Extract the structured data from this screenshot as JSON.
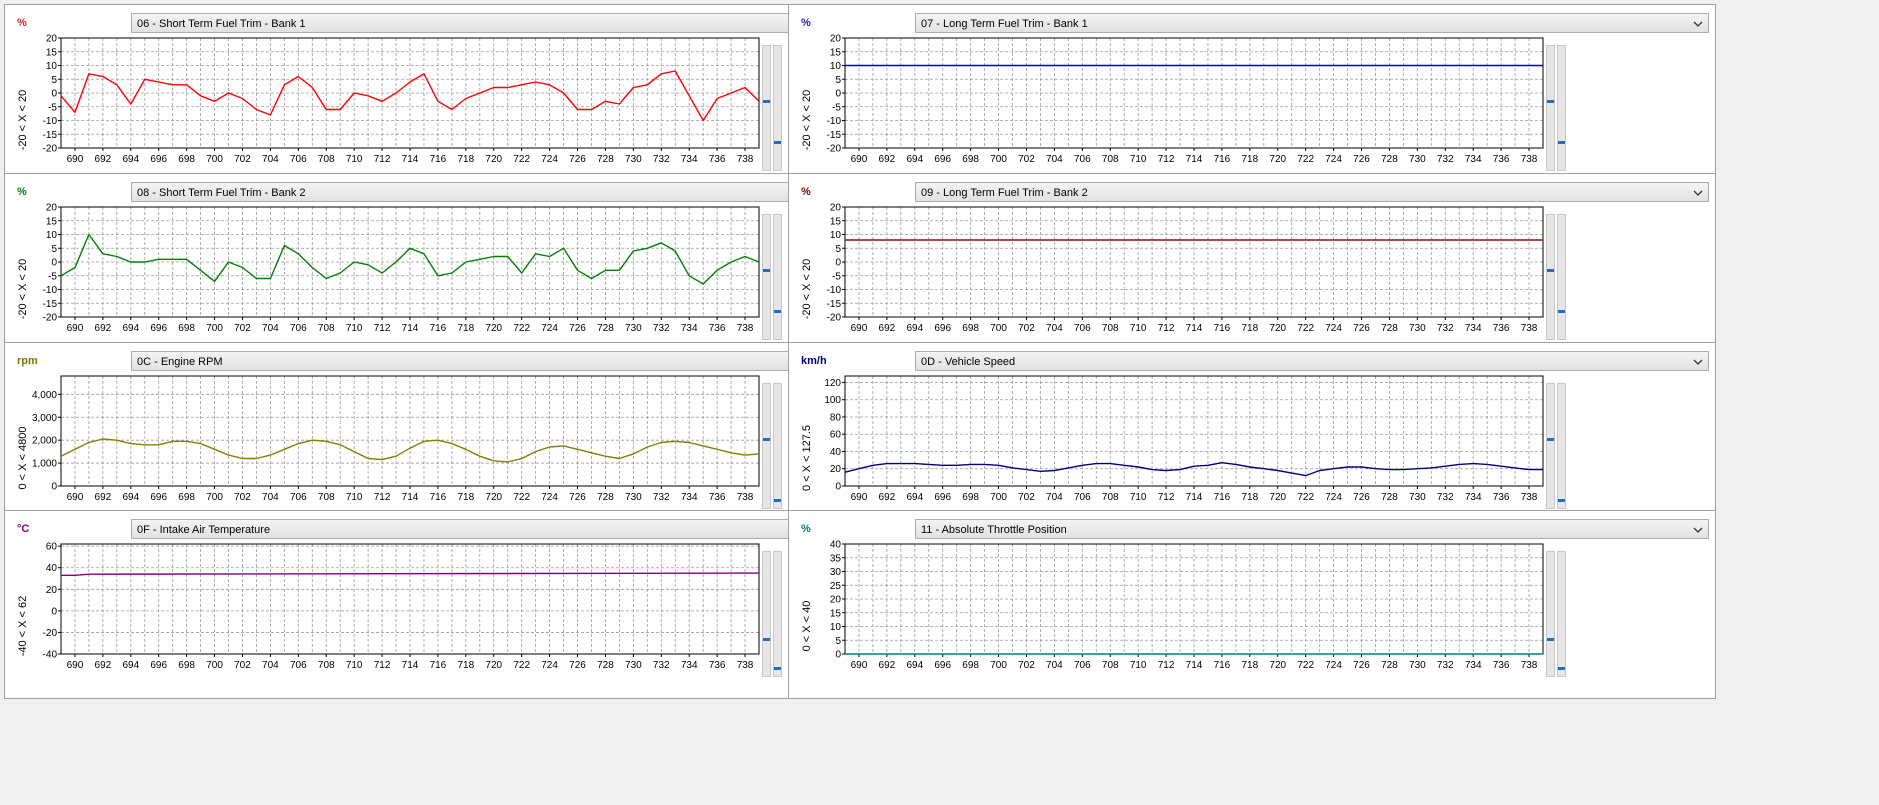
{
  "panels": [
    {
      "unit": "%",
      "unit_color": "#e02020",
      "title": "06 - Short Term Fuel Trim - Bank 1",
      "range_text": "-20  < X <  20",
      "line_color": "#ff0000",
      "slider_levels": [
        0.55,
        0.21
      ]
    },
    {
      "unit": "%",
      "unit_color": "#2020d0",
      "title": "07 - Long Term Fuel Trim - Bank 1",
      "range_text": "-20  < X <  20",
      "line_color": "#0000dd",
      "slider_levels": [
        0.55,
        0.21
      ]
    },
    {
      "unit": "%",
      "unit_color": "#008000",
      "title": "08 - Short Term Fuel Trim - Bank 2",
      "range_text": "-20  < X <  20",
      "line_color": "#008000",
      "slider_levels": [
        0.55,
        0.21
      ]
    },
    {
      "unit": "%",
      "unit_color": "#8b0000",
      "title": "09 - Long Term Fuel Trim - Bank 2",
      "range_text": "-20  < X <  20",
      "line_color": "#8b1010",
      "slider_levels": [
        0.55,
        0.21
      ]
    },
    {
      "unit": "rpm",
      "unit_color": "#7a7a00",
      "title": "0C - Engine RPM",
      "range_text": "0  < X <  4800",
      "line_color": "#808000",
      "slider_levels": [
        0.55,
        0.04
      ]
    },
    {
      "unit": "km/h",
      "unit_color": "#000080",
      "title": "0D - Vehicle Speed",
      "range_text": "0  < X <  127.5",
      "line_color": "#000080",
      "slider_levels": [
        0.55,
        0.04
      ]
    },
    {
      "unit": "°C",
      "unit_color": "#800080",
      "title": "0F - Intake Air Temperature",
      "range_text": "-40  < X <  62",
      "line_color": "#800080",
      "slider_levels": [
        0.28,
        0.04
      ]
    },
    {
      "unit": "%",
      "unit_color": "#008080",
      "title": "11 - Absolute Throttle Position",
      "range_text": "0  < X <  40",
      "line_color": "#008080",
      "slider_levels": [
        0.28,
        0.04
      ]
    }
  ],
  "chart_data": [
    {
      "type": "line",
      "title": "06 - Short Term Fuel Trim - Bank 1",
      "ylabel": "%",
      "xlim": [
        689,
        739
      ],
      "ylim": [
        -20,
        20
      ],
      "xticks": [
        690,
        692,
        694,
        696,
        698,
        700,
        702,
        704,
        706,
        708,
        710,
        712,
        714,
        716,
        718,
        720,
        722,
        724,
        726,
        728,
        730,
        732,
        734,
        736,
        738
      ],
      "yticks": [
        -20,
        -15,
        -10,
        -5,
        0,
        5,
        10,
        15,
        20
      ],
      "grid": true,
      "x": [
        689,
        690,
        691,
        692,
        693,
        694,
        695,
        696,
        697,
        698,
        699,
        700,
        701,
        702,
        703,
        704,
        705,
        706,
        707,
        708,
        709,
        710,
        711,
        712,
        713,
        714,
        715,
        716,
        717,
        718,
        719,
        720,
        721,
        722,
        723,
        724,
        725,
        726,
        727,
        728,
        729,
        730,
        731,
        732,
        733,
        734,
        735,
        736,
        737,
        738,
        739
      ],
      "series": [
        {
          "values": [
            -1,
            -7,
            7,
            6,
            3,
            -4,
            5,
            4,
            3,
            3,
            -1,
            -3,
            0,
            -2,
            -6,
            -8,
            3,
            6,
            2,
            -6,
            -6,
            0,
            -1,
            -3,
            0,
            4,
            7,
            -3,
            -6,
            -2,
            0,
            2,
            2,
            3,
            4,
            3,
            0,
            -6,
            -6,
            -3,
            -4,
            2,
            3,
            7,
            8,
            -1,
            -10,
            -2,
            0,
            2,
            -3
          ]
        }
      ]
    },
    {
      "type": "line",
      "title": "07 - Long Term Fuel Trim - Bank 1",
      "ylabel": "%",
      "xlim": [
        689,
        739
      ],
      "ylim": [
        -20,
        20
      ],
      "xticks": [
        690,
        692,
        694,
        696,
        698,
        700,
        702,
        704,
        706,
        708,
        710,
        712,
        714,
        716,
        718,
        720,
        722,
        724,
        726,
        728,
        730,
        732,
        734,
        736,
        738
      ],
      "yticks": [
        -20,
        -15,
        -10,
        -5,
        0,
        5,
        10,
        15,
        20
      ],
      "grid": true,
      "x": [
        689,
        739
      ],
      "series": [
        {
          "values": [
            10,
            10
          ]
        }
      ]
    },
    {
      "type": "line",
      "title": "08 - Short Term Fuel Trim - Bank 2",
      "ylabel": "%",
      "xlim": [
        689,
        739
      ],
      "ylim": [
        -20,
        20
      ],
      "xticks": [
        690,
        692,
        694,
        696,
        698,
        700,
        702,
        704,
        706,
        708,
        710,
        712,
        714,
        716,
        718,
        720,
        722,
        724,
        726,
        728,
        730,
        732,
        734,
        736,
        738
      ],
      "yticks": [
        -20,
        -15,
        -10,
        -5,
        0,
        5,
        10,
        15,
        20
      ],
      "grid": true,
      "x": [
        689,
        690,
        691,
        692,
        693,
        694,
        695,
        696,
        697,
        698,
        699,
        700,
        701,
        702,
        703,
        704,
        705,
        706,
        707,
        708,
        709,
        710,
        711,
        712,
        713,
        714,
        715,
        716,
        717,
        718,
        719,
        720,
        721,
        722,
        723,
        724,
        725,
        726,
        727,
        728,
        729,
        730,
        731,
        732,
        733,
        734,
        735,
        736,
        737,
        738,
        739
      ],
      "series": [
        {
          "values": [
            -5,
            -2,
            10,
            3,
            2,
            0,
            0,
            1,
            1,
            1,
            -3,
            -7,
            0,
            -2,
            -6,
            -6,
            6,
            3,
            -2,
            -6,
            -4,
            0,
            -1,
            -4,
            0,
            5,
            3,
            -5,
            -4,
            0,
            1,
            2,
            2,
            -4,
            3,
            2,
            5,
            -3,
            -6,
            -3,
            -3,
            4,
            5,
            7,
            4,
            -5,
            -8,
            -3,
            0,
            2,
            0
          ]
        }
      ]
    },
    {
      "type": "line",
      "title": "09 - Long Term Fuel Trim - Bank 2",
      "ylabel": "%",
      "xlim": [
        689,
        739
      ],
      "ylim": [
        -20,
        20
      ],
      "xticks": [
        690,
        692,
        694,
        696,
        698,
        700,
        702,
        704,
        706,
        708,
        710,
        712,
        714,
        716,
        718,
        720,
        722,
        724,
        726,
        728,
        730,
        732,
        734,
        736,
        738
      ],
      "yticks": [
        -20,
        -15,
        -10,
        -5,
        0,
        5,
        10,
        15,
        20
      ],
      "grid": true,
      "x": [
        689,
        739
      ],
      "series": [
        {
          "values": [
            8,
            8
          ]
        }
      ]
    },
    {
      "type": "line",
      "title": "0C - Engine RPM",
      "ylabel": "rpm",
      "xlim": [
        689,
        739
      ],
      "ylim": [
        0,
        4800
      ],
      "xticks": [
        690,
        692,
        694,
        696,
        698,
        700,
        702,
        704,
        706,
        708,
        710,
        712,
        714,
        716,
        718,
        720,
        722,
        724,
        726,
        728,
        730,
        732,
        734,
        736,
        738
      ],
      "yticks": [
        0,
        1000,
        2000,
        3000,
        4000
      ],
      "ytick_labels": [
        "0",
        "1,000",
        "2,000",
        "3,000",
        "4,000"
      ],
      "grid": true,
      "x": [
        689,
        690,
        691,
        692,
        693,
        694,
        695,
        696,
        697,
        698,
        699,
        700,
        701,
        702,
        703,
        704,
        705,
        706,
        707,
        708,
        709,
        710,
        711,
        712,
        713,
        714,
        715,
        716,
        717,
        718,
        719,
        720,
        721,
        722,
        723,
        724,
        725,
        726,
        727,
        728,
        729,
        730,
        731,
        732,
        733,
        734,
        735,
        736,
        737,
        738,
        739
      ],
      "series": [
        {
          "values": [
            1300,
            1600,
            1900,
            2050,
            2000,
            1850,
            1800,
            1800,
            1950,
            1950,
            1850,
            1600,
            1350,
            1200,
            1200,
            1350,
            1600,
            1850,
            2000,
            1950,
            1800,
            1500,
            1200,
            1150,
            1300,
            1650,
            1950,
            2000,
            1850,
            1600,
            1300,
            1100,
            1050,
            1200,
            1500,
            1700,
            1750,
            1600,
            1450,
            1300,
            1200,
            1400,
            1700,
            1900,
            1950,
            1900,
            1750,
            1600,
            1450,
            1350,
            1400
          ]
        }
      ]
    },
    {
      "type": "line",
      "title": "0D - Vehicle Speed",
      "ylabel": "km/h",
      "xlim": [
        689,
        739
      ],
      "ylim": [
        0,
        127.5
      ],
      "xticks": [
        690,
        692,
        694,
        696,
        698,
        700,
        702,
        704,
        706,
        708,
        710,
        712,
        714,
        716,
        718,
        720,
        722,
        724,
        726,
        728,
        730,
        732,
        734,
        736,
        738
      ],
      "yticks": [
        0,
        20,
        40,
        60,
        80,
        100,
        120
      ],
      "grid": true,
      "x": [
        689,
        690,
        691,
        692,
        693,
        694,
        695,
        696,
        697,
        698,
        699,
        700,
        701,
        702,
        703,
        704,
        705,
        706,
        707,
        708,
        709,
        710,
        711,
        712,
        713,
        714,
        715,
        716,
        717,
        718,
        719,
        720,
        721,
        722,
        723,
        724,
        725,
        726,
        727,
        728,
        729,
        730,
        731,
        732,
        733,
        734,
        735,
        736,
        737,
        738,
        739
      ],
      "series": [
        {
          "values": [
            16,
            20,
            24,
            26,
            26,
            26,
            25,
            24,
            24,
            25,
            25,
            24,
            21,
            19,
            17,
            18,
            21,
            24,
            26,
            26,
            24,
            22,
            19,
            18,
            19,
            23,
            24,
            27,
            25,
            22,
            20,
            18,
            15,
            12,
            18,
            20,
            22,
            22,
            20,
            19,
            19,
            20,
            21,
            23,
            25,
            26,
            25,
            23,
            21,
            19,
            19
          ]
        }
      ]
    },
    {
      "type": "line",
      "title": "0F - Intake Air Temperature",
      "ylabel": "°C",
      "xlim": [
        689,
        739
      ],
      "ylim": [
        -40,
        62
      ],
      "xticks": [
        690,
        692,
        694,
        696,
        698,
        700,
        702,
        704,
        706,
        708,
        710,
        712,
        714,
        716,
        718,
        720,
        722,
        724,
        726,
        728,
        730,
        732,
        734,
        736,
        738
      ],
      "yticks": [
        -40,
        -20,
        0,
        20,
        40,
        60
      ],
      "grid": true,
      "x": [
        689,
        690,
        691,
        739
      ],
      "series": [
        {
          "values": [
            33,
            33,
            34,
            35
          ]
        }
      ]
    },
    {
      "type": "line",
      "title": "11 - Absolute Throttle Position",
      "ylabel": "%",
      "xlim": [
        689,
        739
      ],
      "ylim": [
        0,
        40
      ],
      "xticks": [
        690,
        692,
        694,
        696,
        698,
        700,
        702,
        704,
        706,
        708,
        710,
        712,
        714,
        716,
        718,
        720,
        722,
        724,
        726,
        728,
        730,
        732,
        734,
        736,
        738
      ],
      "yticks": [
        0,
        5,
        10,
        15,
        20,
        25,
        30,
        35,
        40
      ],
      "grid": true,
      "x": [
        689,
        739
      ],
      "series": [
        {
          "values": [
            0,
            0
          ]
        }
      ]
    }
  ]
}
